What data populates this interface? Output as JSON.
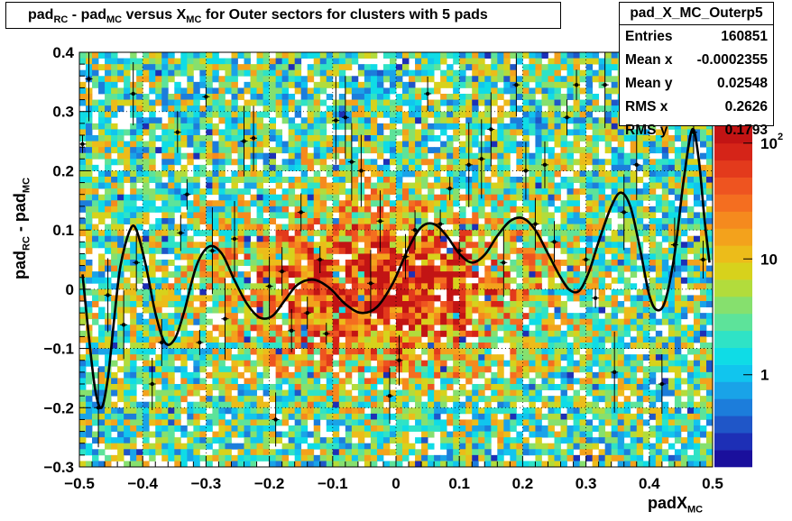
{
  "header": {
    "title_parts": [
      "pad",
      "RC",
      " - pad",
      "MC",
      " versus X",
      "MC",
      " for Outer sectors for clusters with 5 pads"
    ]
  },
  "stats": {
    "name": "pad_X_MC_Outerp5",
    "rows": [
      {
        "label": "Entries",
        "value": "160851"
      },
      {
        "label": "Mean x",
        "value": "-0.0002355"
      },
      {
        "label": "Mean y",
        "value": "0.02548"
      },
      {
        "label": "RMS x",
        "value": "0.2626"
      },
      {
        "label": "RMS y",
        "value": "0.1793"
      }
    ]
  },
  "axis_labels": {
    "y": [
      "pad",
      "RC",
      " - pad",
      "MC"
    ],
    "x": [
      "padX",
      "MC"
    ]
  },
  "chart_data": {
    "type": "heatmap",
    "title": "pad_RC - pad_MC versus X_MC for Outer sectors for clusters with 5 pads",
    "xlim": [
      -0.5,
      0.5
    ],
    "ylim": [
      -0.3,
      0.4
    ],
    "x_ticks": [
      "−0.5",
      "−0.4",
      "−0.3",
      "−0.2",
      "−0.1",
      "0",
      "0.1",
      "0.2",
      "0.3",
      "0.4",
      "0.5"
    ],
    "y_ticks": [
      "−0.3",
      "−0.2",
      "−0.1",
      "0",
      "0.1",
      "0.2",
      "0.3",
      "0.4"
    ],
    "z_log": true,
    "z_ticks": [
      {
        "label": "1",
        "value": 1
      },
      {
        "label": "10",
        "value": 10
      },
      {
        "label": "10",
        "value": 100,
        "exp": "2"
      }
    ],
    "grid": true,
    "palette": [
      "#1a0f9c",
      "#1d2fb6",
      "#1f56c8",
      "#1c7ddb",
      "#19a3e8",
      "#11c5ee",
      "#0fdce6",
      "#2fe3c6",
      "#5de39a",
      "#86e06e",
      "#b2dc3c",
      "#d7d21c",
      "#ecbc1a",
      "#f3a21c",
      "#f58a1e",
      "#f46e20",
      "#ee5420",
      "#e33a1c",
      "#d52418",
      "#c21414"
    ],
    "profile_points": [
      {
        "x": -0.495,
        "y": 0.245
      },
      {
        "x": -0.485,
        "y": 0.355
      },
      {
        "x": -0.47,
        "y": -0.2
      },
      {
        "x": -0.455,
        "y": -0.01
      },
      {
        "x": -0.43,
        "y": -0.06
      },
      {
        "x": -0.415,
        "y": 0.33
      },
      {
        "x": -0.41,
        "y": 0.045
      },
      {
        "x": -0.385,
        "y": -0.16
      },
      {
        "x": -0.37,
        "y": -0.09
      },
      {
        "x": -0.345,
        "y": 0.265
      },
      {
        "x": -0.34,
        "y": 0.095
      },
      {
        "x": -0.33,
        "y": 0.16
      },
      {
        "x": -0.31,
        "y": -0.09
      },
      {
        "x": -0.3,
        "y": 0.325
      },
      {
        "x": -0.29,
        "y": 0.065
      },
      {
        "x": -0.27,
        "y": -0.05
      },
      {
        "x": -0.255,
        "y": 0.085
      },
      {
        "x": -0.24,
        "y": 0.25
      },
      {
        "x": -0.225,
        "y": 0.255
      },
      {
        "x": -0.2,
        "y": 0.005
      },
      {
        "x": -0.19,
        "y": -0.22
      },
      {
        "x": -0.18,
        "y": 0.03
      },
      {
        "x": -0.165,
        "y": -0.07
      },
      {
        "x": -0.15,
        "y": 0.13
      },
      {
        "x": -0.14,
        "y": -0.04
      },
      {
        "x": -0.12,
        "y": 0.05
      },
      {
        "x": -0.11,
        "y": -0.075
      },
      {
        "x": -0.095,
        "y": 0.285
      },
      {
        "x": -0.08,
        "y": 0.29
      },
      {
        "x": -0.07,
        "y": 0.215
      },
      {
        "x": -0.055,
        "y": 0.2
      },
      {
        "x": -0.04,
        "y": 0.01
      },
      {
        "x": -0.025,
        "y": 0.115
      },
      {
        "x": -0.01,
        "y": -0.18
      },
      {
        "x": 0.005,
        "y": -0.12
      },
      {
        "x": 0.015,
        "y": 0.055
      },
      {
        "x": 0.03,
        "y": 0.1
      },
      {
        "x": 0.05,
        "y": 0.33
      },
      {
        "x": 0.07,
        "y": 0.11
      },
      {
        "x": 0.085,
        "y": 0.17
      },
      {
        "x": 0.1,
        "y": 0.065
      },
      {
        "x": 0.115,
        "y": 0.21
      },
      {
        "x": 0.135,
        "y": 0.22
      },
      {
        "x": 0.15,
        "y": 0.27
      },
      {
        "x": 0.17,
        "y": 0.045
      },
      {
        "x": 0.19,
        "y": 0.345
      },
      {
        "x": 0.205,
        "y": 0.2
      },
      {
        "x": 0.22,
        "y": 0.11
      },
      {
        "x": 0.235,
        "y": 0.21
      },
      {
        "x": 0.25,
        "y": 0.08
      },
      {
        "x": 0.27,
        "y": 0.29
      },
      {
        "x": 0.285,
        "y": 0.345
      },
      {
        "x": 0.3,
        "y": 0.05
      },
      {
        "x": 0.315,
        "y": -0.015
      },
      {
        "x": 0.33,
        "y": 0.345
      },
      {
        "x": 0.345,
        "y": -0.14
      },
      {
        "x": 0.36,
        "y": 0.13
      },
      {
        "x": 0.38,
        "y": 0.21
      },
      {
        "x": 0.405,
        "y": 0.36
      },
      {
        "x": 0.42,
        "y": -0.16
      },
      {
        "x": 0.44,
        "y": 0.075
      },
      {
        "x": 0.455,
        "y": 0.395
      },
      {
        "x": 0.47,
        "y": 0.265
      },
      {
        "x": 0.485,
        "y": 0.05
      }
    ],
    "fit_curve": [
      {
        "x": -0.495,
        "y": 0.025
      },
      {
        "x": -0.485,
        "y": -0.08
      },
      {
        "x": -0.475,
        "y": -0.17
      },
      {
        "x": -0.465,
        "y": -0.2
      },
      {
        "x": -0.455,
        "y": -0.15
      },
      {
        "x": -0.445,
        "y": -0.05
      },
      {
        "x": -0.435,
        "y": 0.04
      },
      {
        "x": -0.42,
        "y": 0.1
      },
      {
        "x": -0.41,
        "y": 0.1
      },
      {
        "x": -0.395,
        "y": 0.04
      },
      {
        "x": -0.38,
        "y": -0.04
      },
      {
        "x": -0.365,
        "y": -0.09
      },
      {
        "x": -0.35,
        "y": -0.085
      },
      {
        "x": -0.335,
        "y": -0.04
      },
      {
        "x": -0.315,
        "y": 0.04
      },
      {
        "x": -0.295,
        "y": 0.072
      },
      {
        "x": -0.275,
        "y": 0.06
      },
      {
        "x": -0.255,
        "y": 0.015
      },
      {
        "x": -0.235,
        "y": -0.025
      },
      {
        "x": -0.215,
        "y": -0.048
      },
      {
        "x": -0.195,
        "y": -0.045
      },
      {
        "x": -0.175,
        "y": -0.018
      },
      {
        "x": -0.155,
        "y": 0.008
      },
      {
        "x": -0.13,
        "y": 0.016
      },
      {
        "x": -0.105,
        "y": 0.002
      },
      {
        "x": -0.08,
        "y": -0.025
      },
      {
        "x": -0.055,
        "y": -0.04
      },
      {
        "x": -0.03,
        "y": -0.03
      },
      {
        "x": -0.005,
        "y": 0.01
      },
      {
        "x": 0.02,
        "y": 0.07
      },
      {
        "x": 0.04,
        "y": 0.105
      },
      {
        "x": 0.06,
        "y": 0.11
      },
      {
        "x": 0.08,
        "y": 0.09
      },
      {
        "x": 0.1,
        "y": 0.06
      },
      {
        "x": 0.12,
        "y": 0.045
      },
      {
        "x": 0.14,
        "y": 0.058
      },
      {
        "x": 0.16,
        "y": 0.09
      },
      {
        "x": 0.18,
        "y": 0.115
      },
      {
        "x": 0.2,
        "y": 0.12
      },
      {
        "x": 0.22,
        "y": 0.1
      },
      {
        "x": 0.24,
        "y": 0.06
      },
      {
        "x": 0.26,
        "y": 0.02
      },
      {
        "x": 0.275,
        "y": -0.002
      },
      {
        "x": 0.29,
        "y": -0.002
      },
      {
        "x": 0.305,
        "y": 0.03
      },
      {
        "x": 0.32,
        "y": 0.08
      },
      {
        "x": 0.34,
        "y": 0.14
      },
      {
        "x": 0.355,
        "y": 0.163
      },
      {
        "x": 0.37,
        "y": 0.14
      },
      {
        "x": 0.385,
        "y": 0.07
      },
      {
        "x": 0.4,
        "y": -0.01
      },
      {
        "x": 0.412,
        "y": -0.035
      },
      {
        "x": 0.425,
        "y": -0.02
      },
      {
        "x": 0.44,
        "y": 0.06
      },
      {
        "x": 0.455,
        "y": 0.19
      },
      {
        "x": 0.468,
        "y": 0.27
      },
      {
        "x": 0.478,
        "y": 0.22
      },
      {
        "x": 0.487,
        "y": 0.12
      },
      {
        "x": 0.495,
        "y": 0.045
      }
    ]
  }
}
